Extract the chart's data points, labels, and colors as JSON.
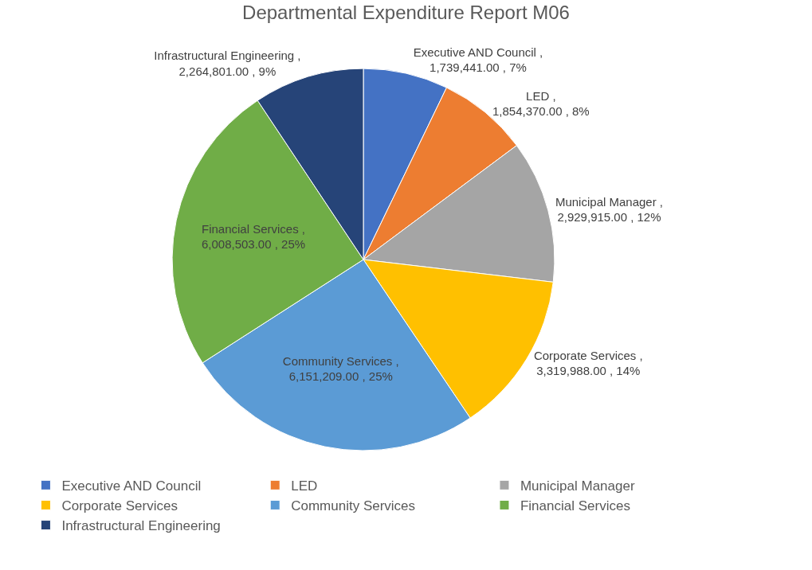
{
  "chart_data": {
    "type": "pie",
    "title": "Departmental Expenditure Report M06",
    "categories": [
      "Executive AND Council",
      "LED",
      "Municipal Manager",
      "Corporate Services",
      "Community Services",
      "Financial Services",
      "Infrastructural Engineering"
    ],
    "values": [
      1739441.0,
      1854370.0,
      2929915.0,
      3319988.0,
      6151209.0,
      6008503.0,
      2264801.0
    ],
    "colors": [
      "#4472c4",
      "#ed7d31",
      "#a5a5a5",
      "#ffc000",
      "#5b9bd5",
      "#70ad47",
      "#264478"
    ],
    "value_labels": [
      "Executive AND Council , 1,739,441.00 , 7%",
      "LED , 1,854,370.00 , 8%",
      "Municipal Manager , 2,929,915.00 , 12%",
      "Corporate Services , 3,319,988.00 , 14%",
      "Community Services , 6,151,209.00 , 25%",
      "Financial Services , 6,008,503.00 , 25%",
      "Infrastructural Engineering , 2,264,801.00 , 9%"
    ],
    "legend": "bottom"
  }
}
